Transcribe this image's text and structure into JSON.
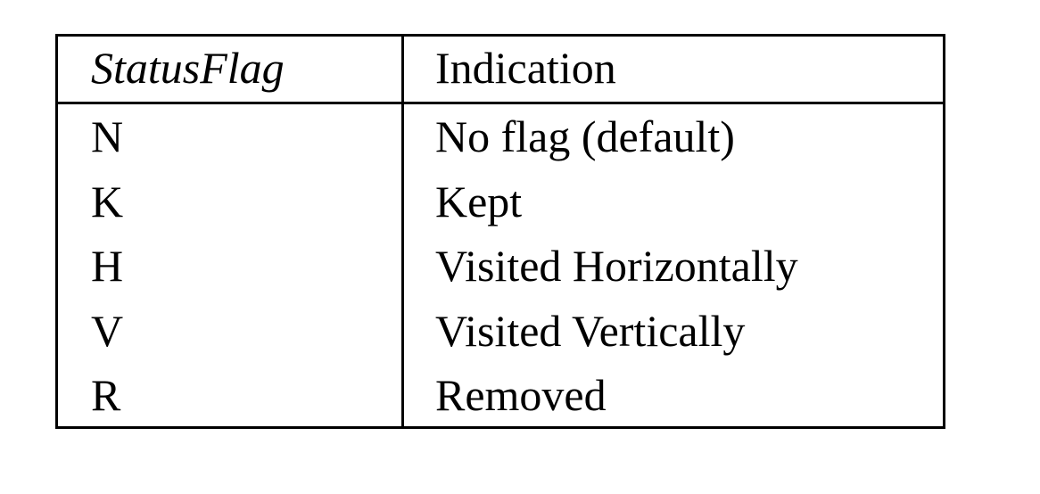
{
  "table": {
    "headers": {
      "status_flag": "StatusFlag",
      "indication": "Indication"
    },
    "rows": [
      {
        "flag": "N",
        "indication": "No flag (default)"
      },
      {
        "flag": "K",
        "indication": "Kept"
      },
      {
        "flag": "H",
        "indication": "Visited Horizontally"
      },
      {
        "flag": "V",
        "indication": "Visited Vertically"
      },
      {
        "flag": "R",
        "indication": "Removed"
      }
    ]
  }
}
